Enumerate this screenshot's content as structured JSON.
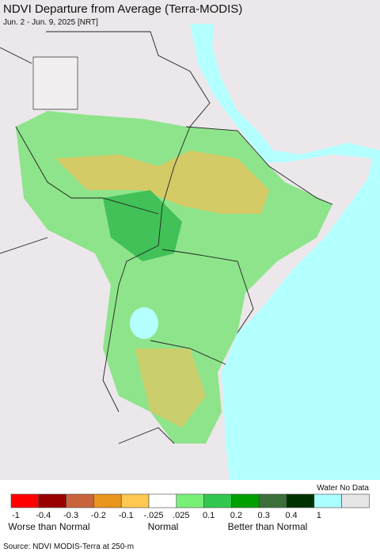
{
  "header": {
    "title": "NDVI Departure from Average (Terra-MODIS)",
    "subtitle": "Jun. 2 - Jun. 9, 2025 [NRT]"
  },
  "legend": {
    "water_no_data": "Water No Data",
    "colors": [
      "#ff0000",
      "#990000",
      "#c8643c",
      "#e8961e",
      "#ffc850",
      "#ffffff",
      "#78f078",
      "#32c850",
      "#00a000",
      "#3c6e3c",
      "#003200",
      "#aaffff",
      "#e6e6e6"
    ],
    "tick_labels": [
      "-1",
      "-0.4",
      "-0.3",
      "-0.2",
      "-0.1",
      "-.025",
      ".025",
      "0.1",
      "0.2",
      "0.3",
      "0.4",
      "1"
    ],
    "captions": [
      "Worse than Normal",
      "Normal",
      "Better than Normal"
    ]
  },
  "source": "Source: NDVI MODIS-Terra at 250-m"
}
